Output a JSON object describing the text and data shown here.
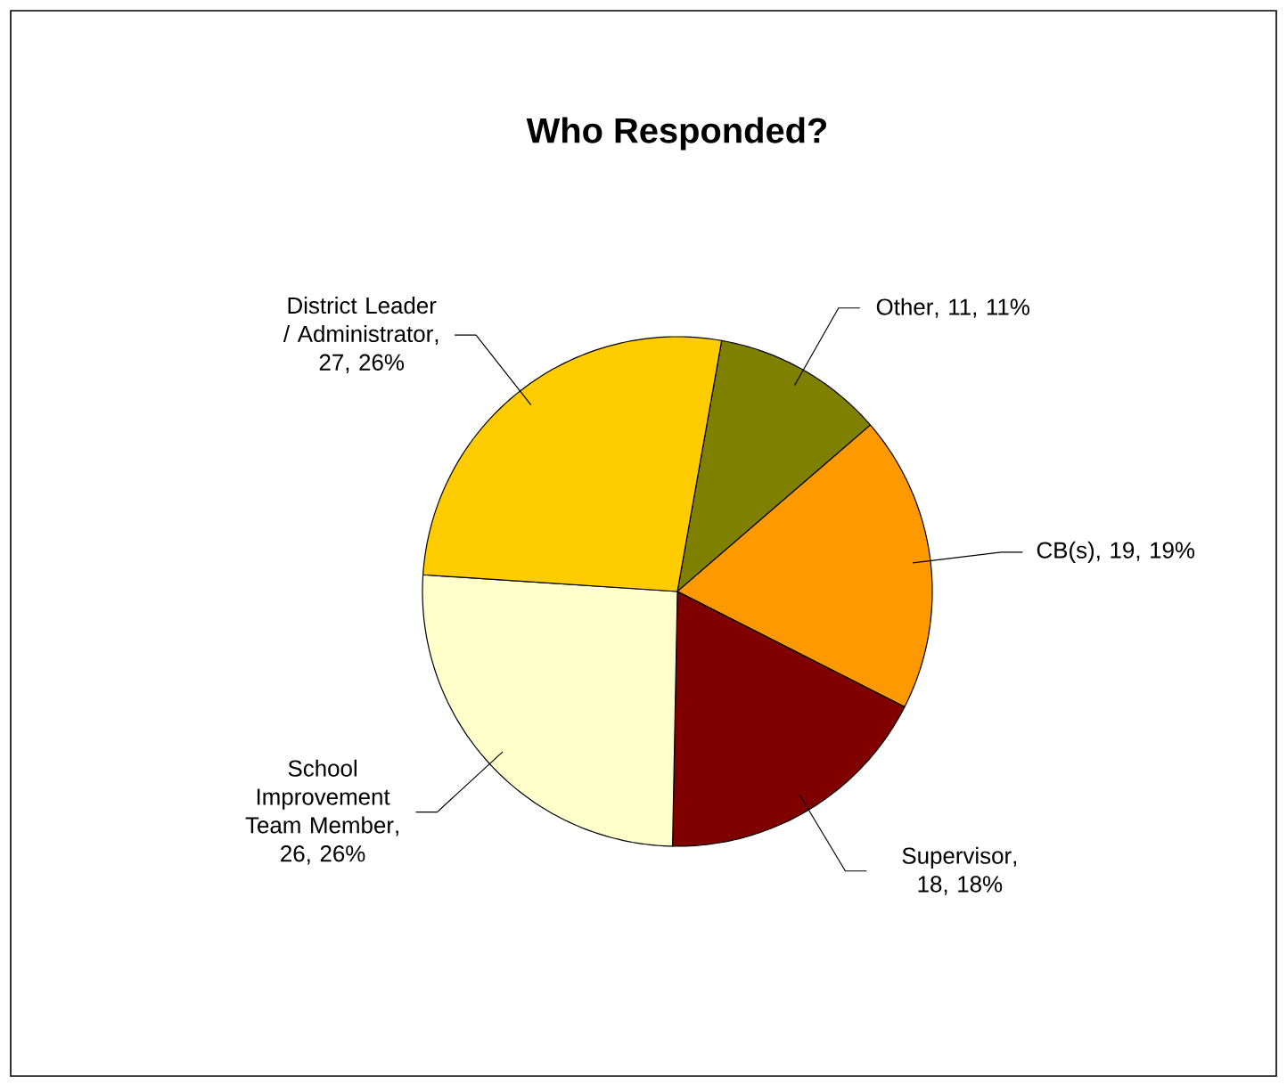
{
  "chart_data": {
    "type": "pie",
    "title": "Who Responded?",
    "categories": [
      "Other",
      "CB(s)",
      "Supervisor",
      "School Improvement Team Member",
      "District Leader / Administrator"
    ],
    "values": [
      11,
      19,
      18,
      26,
      27
    ],
    "colors": [
      "#808000",
      "#ff9900",
      "#800000",
      "#ffffcc",
      "#ffcc00"
    ],
    "value_labels": [
      ", 11, 11%",
      ", 19, 19%",
      ", 18, 18%",
      ", 26, 26%",
      ", 27, 26%"
    ]
  }
}
